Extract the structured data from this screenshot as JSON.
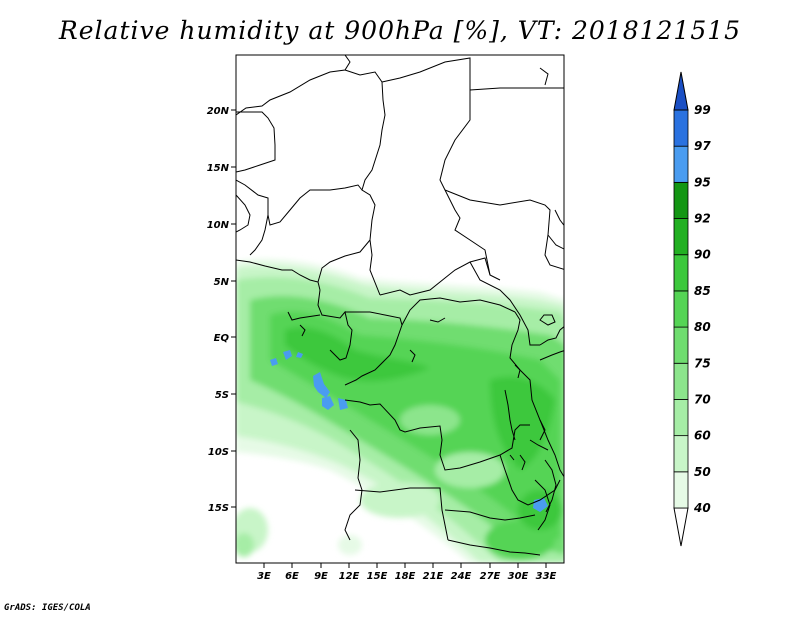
{
  "title": "Relative humidity at 900hPa [%], VT: 2018121515",
  "footer": "GrADS: IGES/COLA",
  "map": {
    "lat_ticks": [
      "20N",
      "15N",
      "10N",
      "5N",
      "EQ",
      "5S",
      "10S",
      "15S"
    ],
    "lon_ticks": [
      "3E",
      "6E",
      "9E",
      "12E",
      "15E",
      "18E",
      "21E",
      "24E",
      "27E",
      "30E",
      "33E"
    ]
  },
  "colorbar": {
    "levels": [
      "40",
      "50",
      "60",
      "70",
      "75",
      "80",
      "85",
      "90",
      "92",
      "95",
      "97",
      "99"
    ],
    "colors": [
      "#ffffff",
      "#e6fae6",
      "#c8f5c8",
      "#a6eda6",
      "#8ce58c",
      "#6fdd6f",
      "#55d455",
      "#3cc83c",
      "#22b022",
      "#139613",
      "#4a9cf0",
      "#2a72e0",
      "#1a4fc4"
    ]
  },
  "colors": {
    "border": "#000000",
    "land": "#ffffff"
  }
}
